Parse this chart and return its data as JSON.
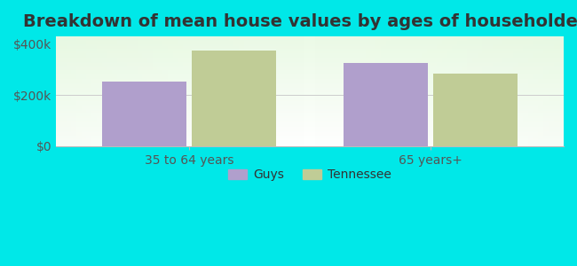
{
  "title": "Breakdown of mean house values by ages of householders",
  "categories": [
    "35 to 64 years",
    "65 years+"
  ],
  "series": {
    "Guys": [
      255000,
      325000
    ],
    "Tennessee": [
      375000,
      285000
    ]
  },
  "bar_colors": {
    "Guys": "#b09fcc",
    "Tennessee": "#c0cc96"
  },
  "ylim": [
    0,
    430000
  ],
  "yticks": [
    0,
    200000,
    400000
  ],
  "ytick_labels": [
    "$0",
    "$200k",
    "$400k"
  ],
  "background_color": "#00e8e8",
  "title_fontsize": 14,
  "tick_fontsize": 10,
  "legend_fontsize": 10,
  "bar_width": 0.35,
  "x_positions": [
    0,
    1
  ]
}
